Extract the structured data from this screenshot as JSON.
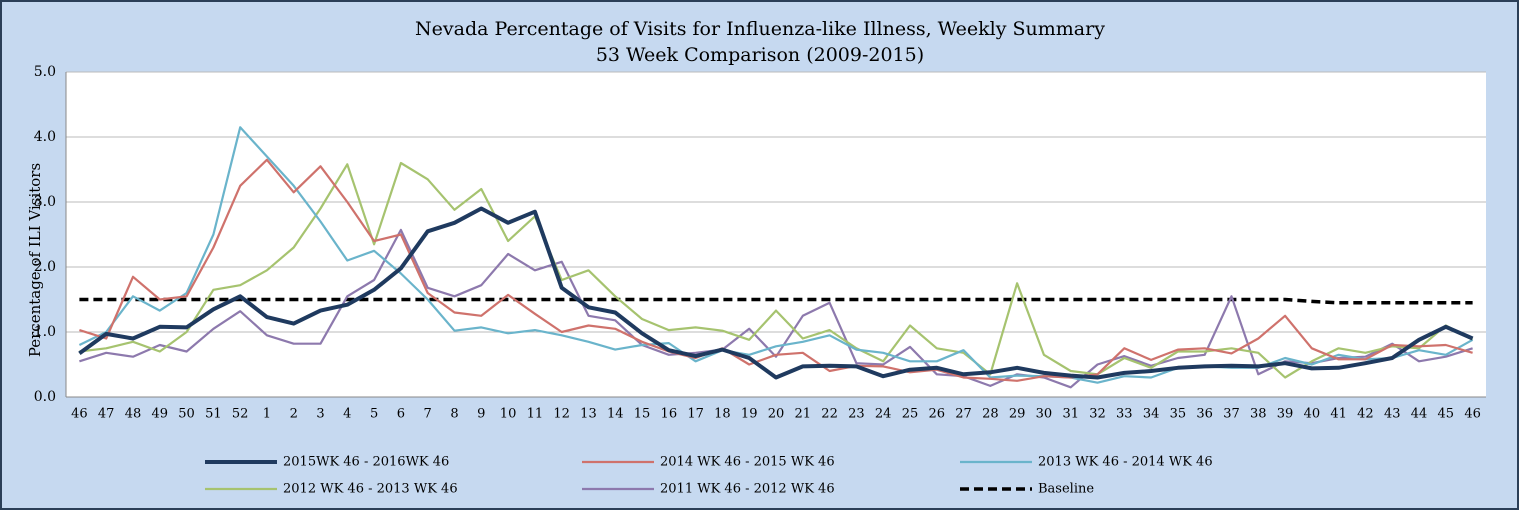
{
  "chart_data": {
    "type": "line",
    "title": "Nevada Percentage of Visits for Influenza-like Illness, Weekly Summary",
    "subtitle": "53 Week Comparison (2009-2015)",
    "y_label": "Percentage of ILI Visitors",
    "categories": [
      "46",
      "47",
      "48",
      "49",
      "50",
      "51",
      "52",
      "1",
      "2",
      "3",
      "4",
      "5",
      "6",
      "7",
      "8",
      "9",
      "10",
      "11",
      "12",
      "13",
      "14",
      "15",
      "16",
      "17",
      "18",
      "19",
      "20",
      "21",
      "22",
      "23",
      "24",
      "25",
      "26",
      "27",
      "28",
      "29",
      "30",
      "31",
      "32",
      "33",
      "34",
      "35",
      "36",
      "37",
      "38",
      "39",
      "40",
      "41",
      "42",
      "43",
      "44",
      "45",
      "46"
    ],
    "ylim": [
      0,
      5
    ],
    "yticks": [
      {
        "value": 0,
        "label": "0.0"
      },
      {
        "value": 1,
        "label": "1.0"
      },
      {
        "value": 2,
        "label": "2.0"
      },
      {
        "value": 3,
        "label": "3.0"
      },
      {
        "value": 4,
        "label": "4.0"
      },
      {
        "value": 5,
        "label": "5.0"
      }
    ],
    "grid": true,
    "series": [
      {
        "name": "2015WK 46 - 2016WK 46",
        "color": "#1f3a5f",
        "line_width": 4,
        "dashed": false,
        "values": [
          0.67,
          0.97,
          0.9,
          1.08,
          1.07,
          1.35,
          1.55,
          1.23,
          1.13,
          1.33,
          1.42,
          1.65,
          1.98,
          2.55,
          2.68,
          2.9,
          2.68,
          2.85,
          1.68,
          1.38,
          1.3,
          0.98,
          0.72,
          0.63,
          0.73,
          0.6,
          0.3,
          0.47,
          0.48,
          0.47,
          0.32,
          0.42,
          0.45,
          0.35,
          0.38,
          0.45,
          0.37,
          0.33,
          0.3,
          0.37,
          0.4,
          0.45,
          0.47,
          0.48,
          0.47,
          0.52,
          0.44,
          0.45,
          0.52,
          0.6,
          0.88,
          1.08,
          0.9
        ]
      },
      {
        "name": "2014 WK 46 - 2015 WK 46",
        "color": "#cf726c",
        "line_width": 2.2,
        "dashed": false,
        "values": [
          1.03,
          0.9,
          1.85,
          1.5,
          1.55,
          2.3,
          3.25,
          3.65,
          3.15,
          3.55,
          3.0,
          2.4,
          2.5,
          1.6,
          1.3,
          1.25,
          1.57,
          1.28,
          1.0,
          1.1,
          1.05,
          0.85,
          0.7,
          0.6,
          0.75,
          0.5,
          0.65,
          0.68,
          0.4,
          0.48,
          0.47,
          0.38,
          0.42,
          0.3,
          0.28,
          0.25,
          0.32,
          0.3,
          0.35,
          0.75,
          0.57,
          0.73,
          0.75,
          0.67,
          0.9,
          1.25,
          0.75,
          0.58,
          0.58,
          0.8,
          0.78,
          0.8,
          0.68
        ]
      },
      {
        "name": "2013 WK 46 - 2014 WK 46",
        "color": "#6ab4cb",
        "line_width": 2.2,
        "dashed": false,
        "values": [
          0.8,
          1.0,
          1.55,
          1.33,
          1.6,
          2.5,
          4.15,
          3.7,
          3.25,
          2.7,
          2.1,
          2.25,
          1.9,
          1.5,
          1.02,
          1.07,
          0.98,
          1.03,
          0.95,
          0.85,
          0.73,
          0.8,
          0.83,
          0.55,
          0.72,
          0.65,
          0.78,
          0.85,
          0.95,
          0.73,
          0.68,
          0.55,
          0.55,
          0.72,
          0.3,
          0.33,
          0.32,
          0.3,
          0.22,
          0.32,
          0.3,
          0.45,
          0.47,
          0.45,
          0.45,
          0.6,
          0.5,
          0.65,
          0.58,
          0.6,
          0.72,
          0.65,
          0.88
        ]
      },
      {
        "name": "2012 WK 46 - 2013 WK 46",
        "color": "#a6c36f",
        "line_width": 2.2,
        "dashed": false,
        "values": [
          0.7,
          0.75,
          0.85,
          0.7,
          1.0,
          1.65,
          1.72,
          1.95,
          2.3,
          2.9,
          3.58,
          2.35,
          3.6,
          3.35,
          2.88,
          3.2,
          2.4,
          2.78,
          1.8,
          1.95,
          1.55,
          1.2,
          1.03,
          1.07,
          1.02,
          0.88,
          1.33,
          0.9,
          1.03,
          0.75,
          0.55,
          1.1,
          0.75,
          0.68,
          0.35,
          1.75,
          0.65,
          0.4,
          0.35,
          0.6,
          0.45,
          0.7,
          0.7,
          0.75,
          0.68,
          0.3,
          0.55,
          0.75,
          0.68,
          0.78,
          0.75,
          1.1,
          0.88
        ]
      },
      {
        "name": "2011 WK 46 - 2012 WK 46",
        "color": "#8d79ad",
        "line_width": 2.2,
        "dashed": false,
        "values": [
          0.55,
          0.68,
          0.62,
          0.8,
          0.7,
          1.05,
          1.32,
          0.95,
          0.82,
          0.82,
          1.55,
          1.8,
          2.57,
          1.68,
          1.55,
          1.72,
          2.2,
          1.95,
          2.08,
          1.25,
          1.18,
          0.8,
          0.65,
          0.68,
          0.73,
          1.05,
          0.62,
          1.25,
          1.45,
          0.52,
          0.5,
          0.77,
          0.35,
          0.32,
          0.17,
          0.35,
          0.3,
          0.15,
          0.5,
          0.63,
          0.48,
          0.6,
          0.65,
          1.55,
          0.35,
          0.55,
          0.52,
          0.6,
          0.62,
          0.82,
          0.55,
          0.62,
          0.75
        ]
      },
      {
        "name": "Baseline",
        "color": "#000000",
        "line_width": 3.5,
        "dashed": true,
        "values": [
          1.5,
          1.5,
          1.5,
          1.5,
          1.5,
          1.5,
          1.5,
          1.5,
          1.5,
          1.5,
          1.5,
          1.5,
          1.5,
          1.5,
          1.5,
          1.5,
          1.5,
          1.5,
          1.5,
          1.5,
          1.5,
          1.5,
          1.5,
          1.5,
          1.5,
          1.5,
          1.5,
          1.5,
          1.5,
          1.5,
          1.5,
          1.5,
          1.5,
          1.5,
          1.5,
          1.5,
          1.5,
          1.5,
          1.5,
          1.5,
          1.5,
          1.5,
          1.5,
          1.5,
          1.5,
          1.5,
          1.47,
          1.45,
          1.45,
          1.45,
          1.45,
          1.45,
          1.45
        ]
      }
    ]
  }
}
